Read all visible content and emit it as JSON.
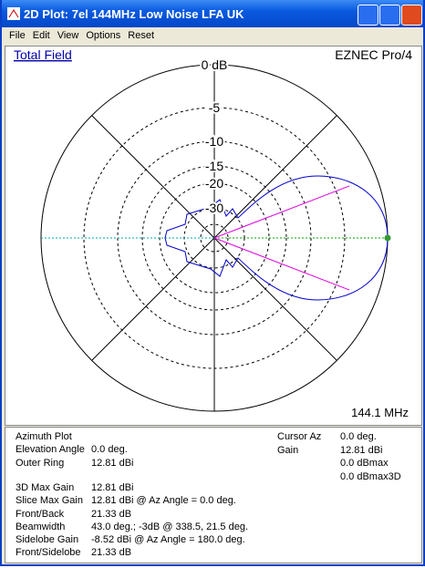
{
  "window": {
    "title": "2D Plot: 7el 144MHz Low Noise LFA UK"
  },
  "menu": [
    "File",
    "Edit",
    "View",
    "Options",
    "Reset"
  ],
  "plot": {
    "field_label": "Total Field",
    "program": "EZNEC Pro/4",
    "frequency": "144.1 MHz",
    "ring_labels": [
      "0 dB",
      "-5",
      "-10",
      "-15",
      "-20",
      "-30"
    ]
  },
  "info": {
    "left": [
      {
        "label": "Azimuth Plot"
      },
      {
        "label": "Elevation Angle",
        "value": "0.0 deg."
      },
      {
        "label": "Outer Ring",
        "value": "12.81 dBi"
      },
      {
        "label": "3D Max Gain",
        "value": "12.81 dBi"
      },
      {
        "label": "Slice Max Gain",
        "value": "12.81 dBi @ Az Angle = 0.0 deg."
      },
      {
        "label": "Front/Back",
        "value": "21.33 dB"
      },
      {
        "label": "Beamwidth",
        "value": "43.0 deg.; -3dB @ 338.5, 21.5 deg."
      },
      {
        "label": "Sidelobe Gain",
        "value": "-8.52 dBi @ Az Angle = 180.0 deg."
      },
      {
        "label": "Front/Sidelobe",
        "value": "21.33 dB"
      }
    ],
    "right": [
      {
        "label": "Cursor Az",
        "value": "0.0 deg."
      },
      {
        "label": "Gain",
        "value": "12.81 dBi"
      },
      {
        "value": "0.0 dBmax"
      },
      {
        "value": "0.0 dBmax3D"
      }
    ]
  }
}
